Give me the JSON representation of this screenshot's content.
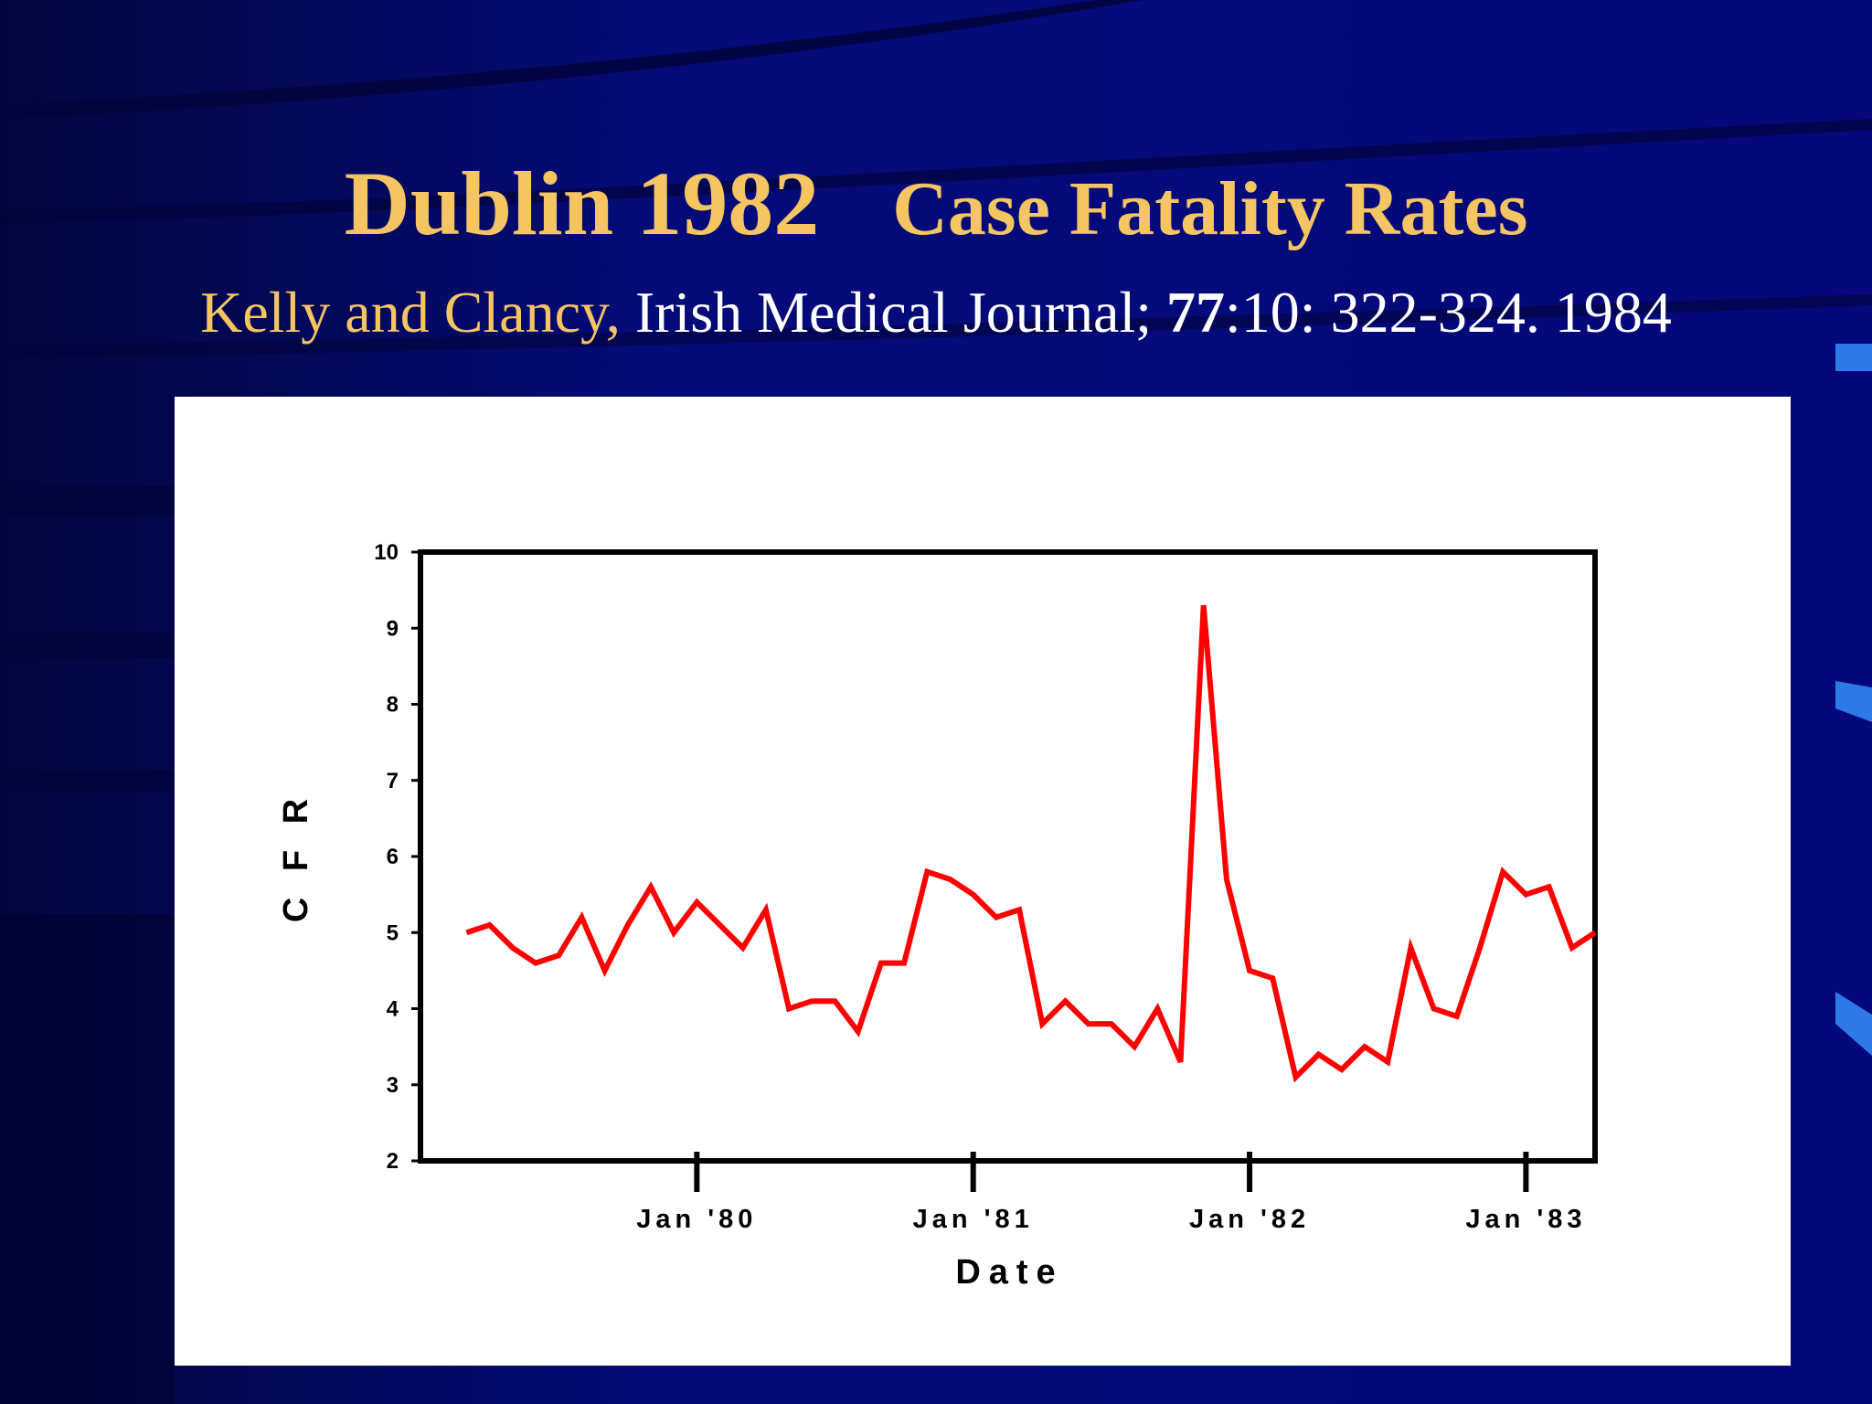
{
  "slide": {
    "title_main": "Dublin 1982",
    "title_sub": "Case Fatality Rates",
    "citation_authors": "Kelly and Clancy,",
    "citation_journal": " Irish Medical Journal; ",
    "citation_volume": "77",
    "citation_rest": ":10: 322-324. 1984"
  },
  "colors": {
    "background": "#030a6e",
    "title": "#f5c463",
    "series_line": "#ff0000",
    "axis": "#000000"
  },
  "chart_data": {
    "type": "line",
    "title": "",
    "xlabel": "Date",
    "ylabel": "C F R",
    "ylim": [
      2,
      10
    ],
    "yticks": [
      2,
      3,
      4,
      5,
      6,
      7,
      8,
      9,
      10
    ],
    "ytick_labels": [
      "2",
      "3",
      "4",
      "5",
      "6",
      "7",
      "8",
      "9",
      "10"
    ],
    "xlim": [
      "1979-01",
      "1983-04"
    ],
    "xticks": [
      {
        "label": "Jan '80",
        "date": "1980-01"
      },
      {
        "label": "Jan '81",
        "date": "1981-01"
      },
      {
        "label": "Jan '82",
        "date": "1982-01"
      },
      {
        "label": "Jan '83",
        "date": "1983-01"
      }
    ],
    "grid": false,
    "series": [
      {
        "x": [
          "1979-03",
          "1979-04",
          "1979-05",
          "1979-06",
          "1979-07",
          "1979-08",
          "1979-09",
          "1979-10",
          "1979-11",
          "1979-12",
          "1980-01",
          "1980-02",
          "1980-03",
          "1980-04",
          "1980-05",
          "1980-06",
          "1980-07",
          "1980-08",
          "1980-09",
          "1980-10",
          "1980-11",
          "1980-12",
          "1981-01",
          "1981-02",
          "1981-03",
          "1981-04",
          "1981-05",
          "1981-06",
          "1981-07",
          "1981-08",
          "1981-09",
          "1981-10",
          "1981-11",
          "1981-12",
          "1982-01",
          "1982-02",
          "1982-03",
          "1982-04",
          "1982-05",
          "1982-06",
          "1982-07",
          "1982-08",
          "1982-09",
          "1982-10",
          "1982-11",
          "1982-12",
          "1983-01",
          "1983-02",
          "1983-03",
          "1983-04"
        ],
        "values": [
          5.0,
          5.1,
          4.8,
          4.6,
          4.7,
          5.2,
          4.5,
          5.1,
          5.6,
          5.0,
          5.4,
          5.1,
          4.8,
          5.3,
          4.0,
          4.1,
          4.1,
          3.7,
          4.6,
          4.6,
          5.8,
          5.7,
          5.5,
          5.2,
          5.3,
          3.8,
          4.1,
          3.8,
          3.8,
          3.5,
          4.0,
          3.3,
          9.3,
          5.7,
          4.5,
          4.4,
          3.1,
          3.4,
          3.2,
          3.5,
          3.3,
          4.8,
          4.0,
          3.9,
          4.8,
          5.8,
          5.5,
          5.6,
          4.8,
          5.0
        ]
      }
    ]
  }
}
